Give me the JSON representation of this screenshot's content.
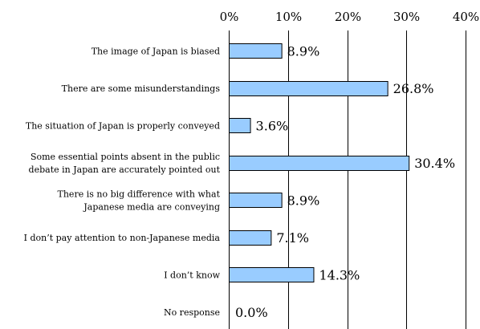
{
  "chart_data": {
    "type": "bar",
    "orientation": "horizontal",
    "title": "",
    "xlabel": "",
    "ylabel": "",
    "xlim": [
      0,
      40
    ],
    "x_ticks": [
      0,
      10,
      20,
      30,
      40
    ],
    "x_tick_labels": [
      "0%",
      "10%",
      "20%",
      "30%",
      "40%"
    ],
    "grid": "vertical",
    "bar_color": "#99ccff",
    "categories": [
      [
        "The image of Japan is biased"
      ],
      [
        "There are some misunderstandings"
      ],
      [
        "The situation of Japan is properly conveyed"
      ],
      [
        "Some essential points absent in the public",
        "debate in Japan are accurately pointed out"
      ],
      [
        "There is no big difference with what",
        "Japanese media are conveying"
      ],
      [
        "I don’t pay attention  to non-Japanese   media"
      ],
      [
        "I don’t know"
      ],
      [
        "No response"
      ]
    ],
    "values": [
      8.9,
      26.8,
      3.6,
      30.4,
      8.9,
      7.1,
      14.3,
      0.0
    ],
    "value_labels": [
      "8.9%",
      "26.8%",
      "3.6%",
      "30.4%",
      "8.9%",
      "7.1%",
      "14.3%",
      "0.0%"
    ]
  }
}
